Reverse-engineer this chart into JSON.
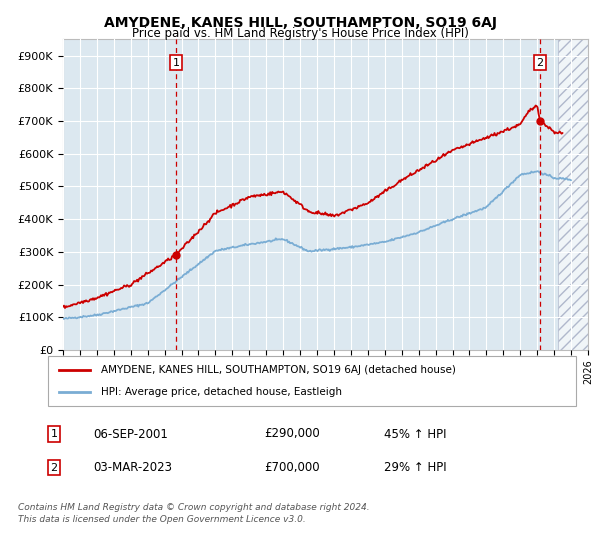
{
  "title": "AMYDENE, KANES HILL, SOUTHAMPTON, SO19 6AJ",
  "subtitle": "Price paid vs. HM Land Registry's House Price Index (HPI)",
  "hpi_label": "HPI: Average price, detached house, Eastleigh",
  "property_label": "AMYDENE, KANES HILL, SOUTHAMPTON, SO19 6AJ (detached house)",
  "transaction1": {
    "date": 2001.67,
    "price": 290000,
    "label": "06-SEP-2001",
    "price_str": "£290,000",
    "pct": "45% ↑ HPI"
  },
  "transaction2": {
    "date": 2023.17,
    "price": 700000,
    "label": "03-MAR-2023",
    "price_str": "£700,000",
    "pct": "29% ↑ HPI"
  },
  "ylim": [
    0,
    950000
  ],
  "xlim_start": 1995.0,
  "xlim_end": 2026.0,
  "future_start": 2024.25,
  "red_color": "#cc0000",
  "blue_color": "#7aadd4",
  "bg_color": "#dce8f0",
  "footer_line1": "Contains HM Land Registry data © Crown copyright and database right 2024.",
  "footer_line2": "This data is licensed under the Open Government Licence v3.0.",
  "yticks": [
    0,
    100000,
    200000,
    300000,
    400000,
    500000,
    600000,
    700000,
    800000,
    900000
  ],
  "yticklabels": [
    "£0",
    "£100K",
    "£200K",
    "£300K",
    "£400K",
    "£500K",
    "£600K",
    "£700K",
    "£800K",
    "£900K"
  ]
}
